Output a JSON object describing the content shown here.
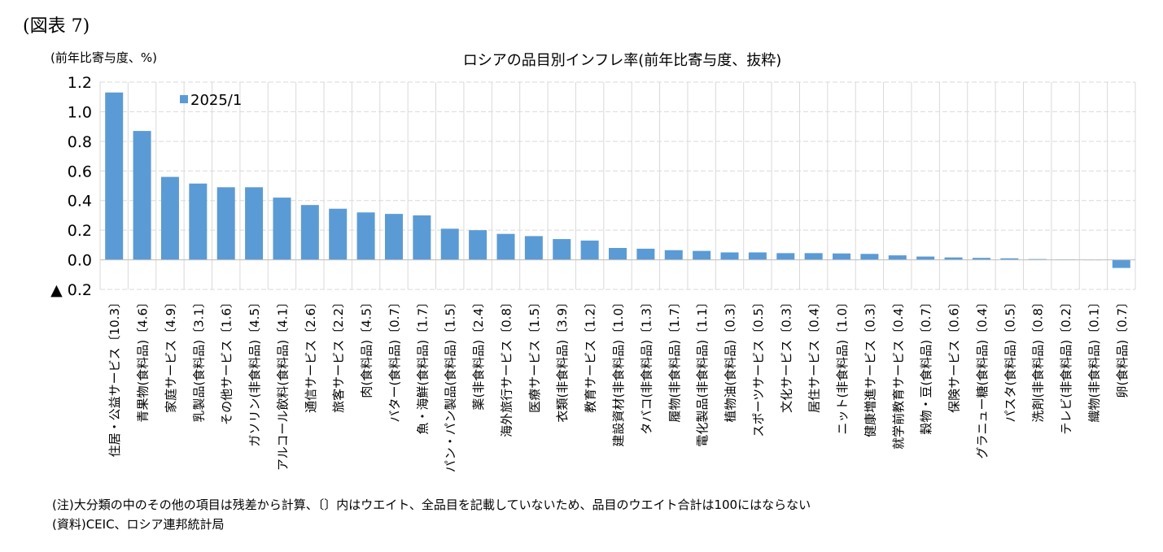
{
  "figure_label": "(図表 7)",
  "note": "(注)大分類の中のその他の項目は残差から計算、〔〕内はウエイト、全品目を記載していないため、品目のウエイト合計は100にはならない",
  "source": "(資料)CEIC、ロシア連邦統計局",
  "chart_data": {
    "type": "bar",
    "title": "ロシアの品目別インフレ率(前年比寄与度、抜粋)",
    "ylabel": "(前年比寄与度、%)",
    "xlabel": "",
    "ylim": [
      -0.2,
      1.2
    ],
    "yticks": [
      1.2,
      1.0,
      0.8,
      0.6,
      0.4,
      0.2,
      0.0,
      -0.2
    ],
    "ytick_labels": [
      "1.2",
      "1.0",
      "0.8",
      "0.6",
      "0.4",
      "0.2",
      "0.0",
      "▲ 0.2"
    ],
    "grid": true,
    "legend_position": "top-left",
    "colors": {
      "bar": "#5b9bd5",
      "grid": "#d9d9d9"
    },
    "categories": [
      "住居・公益サービス〔10.3〕",
      "青果物(食料品)〔4.6〕",
      "家庭サービス〔4.9〕",
      "乳製品(食料品)〔3.1〕",
      "その他サービス〔1.6〕",
      "ガソリン(非食料品)〔4.5〕",
      "アルコール飲料(食料品)〔4.1〕",
      "通信サービス〔2.6〕",
      "旅客サービス〔2.2〕",
      "肉(食料品)〔4.5〕",
      "バター(食料品)〔0.7〕",
      "魚・海鮮(食料品)〔1.7〕",
      "パン・パン製品(食料品)〔1.5〕",
      "薬(非食料品)〔2.4〕",
      "海外旅行サービス〔0.8〕",
      "医療サービス〔1.5〕",
      "衣類(非食料品)〔3.9〕",
      "教育サービス〔1.2〕",
      "建設資材(非食料品)〔1.0〕",
      "タバコ(非食料品)〔1.3〕",
      "履物(非食料品)〔1.7〕",
      "電化製品(非食料品)〔1.1〕",
      "植物油(食料品)〔0.3〕",
      "スポーツサービス〔0.5〕",
      "文化サービス〔0.3〕",
      "居住サービス〔0.4〕",
      "ニット(非食料品)〔1.0〕",
      "健康増進サービス〔0.3〕",
      "就学前教育サービス〔0.4〕",
      "穀物・豆(食料品)〔0.7〕",
      "保険サービス〔0.6〕",
      "グラニュー糖(食料品)〔0.4〕",
      "パスタ(食料品)〔0.5〕",
      "洗剤(非食料品)〔0.8〕",
      "テレビ(非食料品)〔0.2〕",
      "織物(非食料品)〔0.1〕",
      "卵(食料品)〔0.7〕"
    ],
    "series": [
      {
        "name": "2025/1",
        "values": [
          1.13,
          0.87,
          0.56,
          0.515,
          0.49,
          0.49,
          0.42,
          0.37,
          0.345,
          0.32,
          0.31,
          0.3,
          0.21,
          0.2,
          0.175,
          0.16,
          0.14,
          0.13,
          0.08,
          0.075,
          0.065,
          0.06,
          0.05,
          0.05,
          0.045,
          0.045,
          0.043,
          0.04,
          0.03,
          0.022,
          0.016,
          0.013,
          0.01,
          0.005,
          0.003,
          0.0,
          -0.055
        ]
      }
    ]
  }
}
